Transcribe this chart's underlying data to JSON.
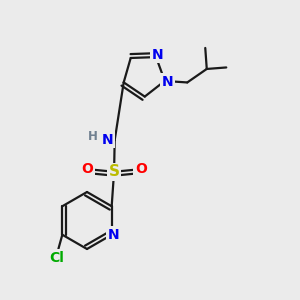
{
  "bg_color": "#ebebeb",
  "atom_colors": {
    "C": "#000000",
    "N": "#0000ee",
    "O": "#ff0000",
    "S": "#bbbb00",
    "Cl": "#00aa00",
    "H": "#708090"
  },
  "bond_color": "#1a1a1a",
  "bond_width": 1.6,
  "font_size": 8.5
}
